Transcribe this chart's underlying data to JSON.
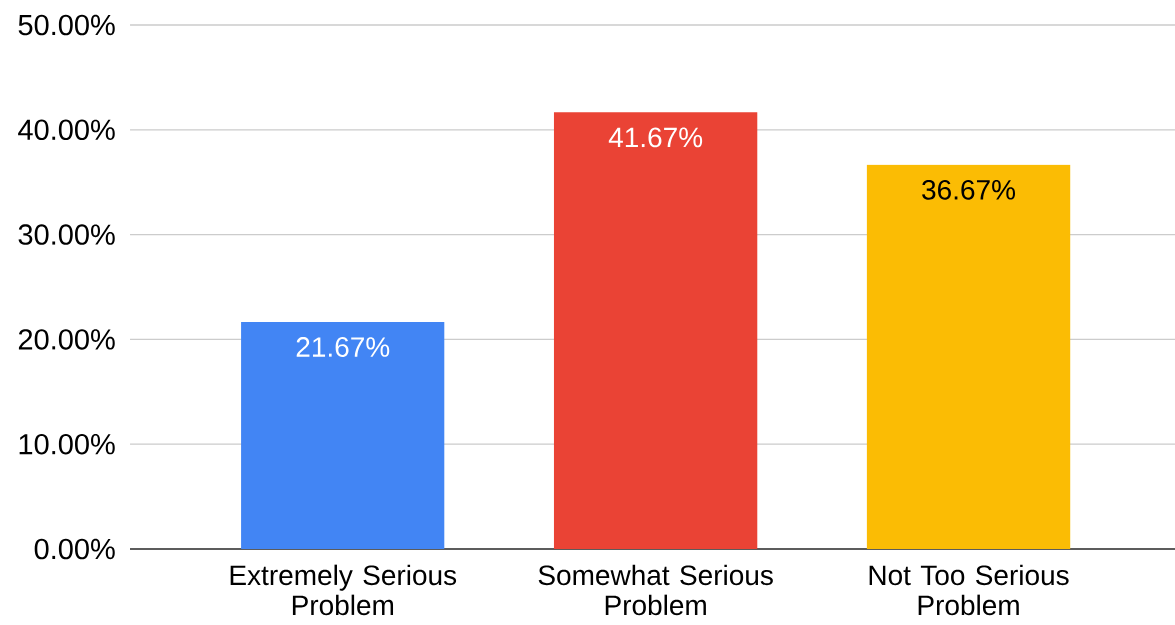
{
  "chart_data": {
    "type": "bar",
    "categories": [
      "Extremely Serious Problem",
      "Somewhat Serious Problem",
      "Not Too Serious Problem"
    ],
    "values": [
      21.67,
      41.67,
      36.67
    ],
    "colors": [
      "#4285f4",
      "#ea4335",
      "#fbbc04"
    ],
    "value_labels": [
      "21.67%",
      "41.67%",
      "36.67%"
    ],
    "ylim": [
      0,
      50
    ],
    "yticks": [
      {
        "value": 0,
        "label": "0.00%"
      },
      {
        "value": 10,
        "label": "10.00%"
      },
      {
        "value": 20,
        "label": "20.00%"
      },
      {
        "value": 30,
        "label": "30.00%"
      },
      {
        "value": 40,
        "label": "40.00%"
      },
      {
        "value": 50,
        "label": "50.00%"
      }
    ],
    "grid": "y"
  }
}
